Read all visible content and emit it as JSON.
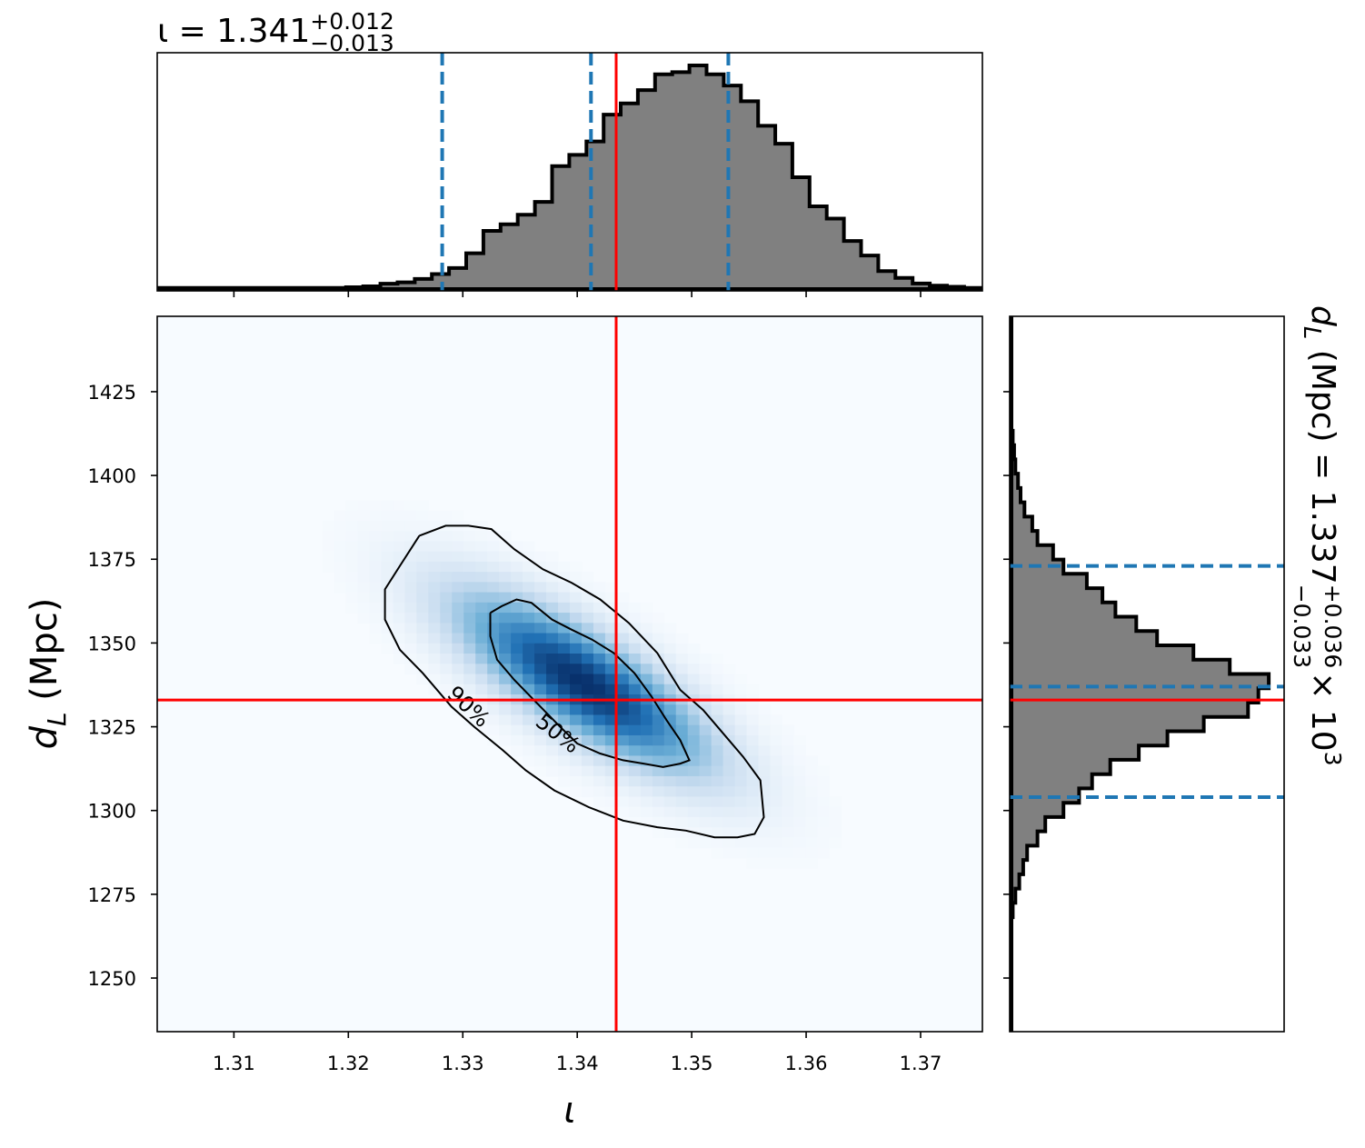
{
  "chart_data": {
    "type": "corner",
    "colors": {
      "truth": "#ff0000",
      "quantile": "#1f77b4",
      "hist_fill": "#808080",
      "hist_edge": "#000000",
      "density_low": "#f7fbff",
      "density_high": "#08306b"
    },
    "x_param": {
      "xlabel": "ι",
      "xlim": [
        1.3033,
        1.3754
      ],
      "ticks": [
        1.31,
        1.32,
        1.33,
        1.34,
        1.35,
        1.36,
        1.37
      ],
      "tick_labels": [
        "1.31",
        "1.32",
        "1.33",
        "1.34",
        "1.35",
        "1.36",
        "1.37"
      ],
      "truth": 1.3434,
      "quantiles": [
        1.3282,
        1.3412,
        1.3532
      ],
      "title_prefix": "ι = 1.341",
      "title_sup": "+0.012",
      "title_sub": "−0.013",
      "histogram": {
        "bin_start": 1.3033,
        "bin_width": 0.0015,
        "counts": [
          0.005,
          0.005,
          0.005,
          0.005,
          0.005,
          0.005,
          0.005,
          0.005,
          0.005,
          0.005,
          0.005,
          0.008,
          0.012,
          0.024,
          0.03,
          0.045,
          0.067,
          0.094,
          0.16,
          0.26,
          0.29,
          0.332,
          0.39,
          0.55,
          0.6,
          0.66,
          0.78,
          0.83,
          0.89,
          0.96,
          0.97,
          1.0,
          0.96,
          0.91,
          0.84,
          0.73,
          0.65,
          0.5,
          0.37,
          0.315,
          0.215,
          0.15,
          0.08,
          0.05,
          0.025,
          0.015,
          0.01,
          0.005,
          0.005,
          0.005
        ]
      }
    },
    "y_param": {
      "ylabel": "d_L (Mpc)",
      "ylim": [
        1234,
        1447.5
      ],
      "ticks": [
        1250,
        1275,
        1300,
        1325,
        1350,
        1375,
        1400,
        1425
      ],
      "tick_labels": [
        "1250",
        "1275",
        "1300",
        "1325",
        "1350",
        "1375",
        "1400",
        "1425"
      ],
      "truth": 1333,
      "quantiles": [
        1304,
        1337,
        1373
      ],
      "title_prefix": "d",
      "title_subscript": "L",
      "title_mid": " (Mpc) = 1.337",
      "title_sup": "+0.036",
      "title_sub": "−0.033",
      "title_suffix": " × 10",
      "title_exp": "3",
      "histogram": {
        "bin_start": 1234,
        "bin_width": 4.27,
        "counts": [
          0.0,
          0.0,
          0.0,
          0.0,
          0.0,
          0.0,
          0.0,
          0.0,
          0.005,
          0.015,
          0.03,
          0.045,
          0.06,
          0.1,
          0.13,
          0.2,
          0.26,
          0.31,
          0.38,
          0.49,
          0.6,
          0.74,
          0.91,
          0.95,
          0.99,
          0.84,
          0.7,
          0.56,
          0.48,
          0.4,
          0.35,
          0.29,
          0.2,
          0.16,
          0.1,
          0.08,
          0.05,
          0.035,
          0.025,
          0.015,
          0.01,
          0.005,
          0.0,
          0.0,
          0.0,
          0.0,
          0.0,
          0.0,
          0.0,
          0.0
        ]
      }
    },
    "density": {
      "mean_x": 1.3405,
      "mean_y": 1338,
      "std_x": 0.0075,
      "std_y": 18,
      "correlation": -0.78
    },
    "contours": [
      {
        "label": "50%",
        "points": [
          [
            1.3324,
            1359
          ],
          [
            1.3334,
            1361
          ],
          [
            1.3347,
            1363
          ],
          [
            1.336,
            1362
          ],
          [
            1.3378,
            1357
          ],
          [
            1.3395,
            1354
          ],
          [
            1.3413,
            1351
          ],
          [
            1.3432,
            1347
          ],
          [
            1.345,
            1341
          ],
          [
            1.3465,
            1334
          ],
          [
            1.3478,
            1327
          ],
          [
            1.349,
            1321
          ],
          [
            1.3498,
            1315
          ],
          [
            1.349,
            1314
          ],
          [
            1.3475,
            1313
          ],
          [
            1.3458,
            1314
          ],
          [
            1.344,
            1315
          ],
          [
            1.342,
            1317
          ],
          [
            1.34,
            1320
          ],
          [
            1.3385,
            1325
          ],
          [
            1.3365,
            1332
          ],
          [
            1.3345,
            1339
          ],
          [
            1.333,
            1345
          ],
          [
            1.3324,
            1352
          ],
          [
            1.3324,
            1359
          ]
        ]
      },
      {
        "label": "90%",
        "points": [
          [
            1.3262,
            1382
          ],
          [
            1.3285,
            1385
          ],
          [
            1.3305,
            1385
          ],
          [
            1.3325,
            1384
          ],
          [
            1.3345,
            1378
          ],
          [
            1.337,
            1372
          ],
          [
            1.3395,
            1368
          ],
          [
            1.342,
            1363
          ],
          [
            1.3445,
            1356
          ],
          [
            1.347,
            1347
          ],
          [
            1.349,
            1336
          ],
          [
            1.351,
            1330
          ],
          [
            1.3525,
            1324
          ],
          [
            1.3545,
            1316
          ],
          [
            1.356,
            1309
          ],
          [
            1.3563,
            1298
          ],
          [
            1.3555,
            1293
          ],
          [
            1.354,
            1292
          ],
          [
            1.352,
            1292
          ],
          [
            1.3495,
            1294
          ],
          [
            1.347,
            1295
          ],
          [
            1.344,
            1297
          ],
          [
            1.341,
            1301
          ],
          [
            1.338,
            1306
          ],
          [
            1.3355,
            1312
          ],
          [
            1.3335,
            1318
          ],
          [
            1.331,
            1325
          ],
          [
            1.329,
            1331
          ],
          [
            1.3265,
            1341
          ],
          [
            1.3245,
            1348
          ],
          [
            1.3232,
            1357
          ],
          [
            1.3232,
            1366
          ],
          [
            1.3245,
            1373
          ],
          [
            1.3262,
            1382
          ]
        ]
      }
    ],
    "contour_labels": [
      {
        "text": "90%",
        "x": 1.3305,
        "y": 1331,
        "angle": 43
      },
      {
        "text": "50%",
        "x": 1.3383,
        "y": 1323,
        "angle": 38
      }
    ]
  }
}
